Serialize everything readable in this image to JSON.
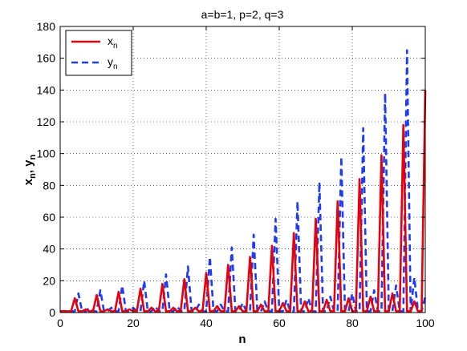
{
  "chart_data": {
    "type": "line",
    "title": "a=b=1, p=2, q=3",
    "xlabel": "n",
    "ylabel": "x_n, y_n",
    "xlim": [
      0,
      100
    ],
    "ylim": [
      0,
      180
    ],
    "xticks": [
      0,
      20,
      40,
      60,
      80,
      100
    ],
    "yticks": [
      0,
      20,
      40,
      60,
      80,
      100,
      120,
      140,
      160,
      180
    ],
    "grid": "dotted",
    "legend": "top-left",
    "series": [
      {
        "name": "x_n",
        "color": "#e8000b",
        "style": "solid",
        "peaks": [
          [
            4,
            9
          ],
          [
            10,
            11
          ],
          [
            16,
            13
          ],
          [
            22,
            15
          ],
          [
            28,
            18
          ],
          [
            34,
            21
          ],
          [
            40,
            25
          ],
          [
            46,
            30
          ],
          [
            52,
            35
          ],
          [
            58,
            42
          ],
          [
            64,
            50
          ],
          [
            70,
            59
          ],
          [
            76,
            70
          ],
          [
            82,
            84
          ],
          [
            88,
            99
          ],
          [
            94,
            118
          ],
          [
            100,
            140
          ]
        ],
        "secondary": [
          [
            7,
            2
          ],
          [
            13,
            2
          ],
          [
            19,
            2
          ],
          [
            25,
            3
          ],
          [
            31,
            3
          ],
          [
            37,
            3
          ],
          [
            43,
            4
          ],
          [
            49,
            4
          ],
          [
            55,
            5
          ],
          [
            61,
            6
          ],
          [
            67,
            7
          ],
          [
            73,
            8
          ],
          [
            79,
            9
          ],
          [
            85,
            10
          ],
          [
            91,
            12
          ],
          [
            97,
            7
          ]
        ]
      },
      {
        "name": "y_n",
        "color": "#1f3cf5",
        "style": "dashed",
        "peaks": [
          [
            5,
            12
          ],
          [
            11,
            14
          ],
          [
            17,
            17
          ],
          [
            23,
            20
          ],
          [
            29,
            24
          ],
          [
            35,
            29
          ],
          [
            41,
            35
          ],
          [
            47,
            41
          ],
          [
            53,
            49
          ],
          [
            59,
            59
          ],
          [
            65,
            70
          ],
          [
            71,
            82
          ],
          [
            77,
            98
          ],
          [
            83,
            116
          ],
          [
            89,
            138
          ],
          [
            95,
            165
          ],
          [
            100,
            10
          ]
        ],
        "secondary": [
          [
            8,
            3
          ],
          [
            14,
            3
          ],
          [
            20,
            3
          ],
          [
            26,
            4
          ],
          [
            32,
            4
          ],
          [
            38,
            5
          ],
          [
            44,
            5
          ],
          [
            50,
            6
          ],
          [
            56,
            7
          ],
          [
            62,
            8
          ],
          [
            68,
            9
          ],
          [
            74,
            10
          ],
          [
            80,
            12
          ],
          [
            86,
            14
          ],
          [
            92,
            17
          ],
          [
            97,
            22
          ]
        ]
      }
    ],
    "legend_entries": [
      {
        "base": "x",
        "sub": "n"
      },
      {
        "base": "y",
        "sub": "n"
      }
    ],
    "ylabel_parts": {
      "a": "x",
      "a_sub": "n",
      "sep": ", ",
      "b": "y",
      "b_sub": "n"
    }
  }
}
